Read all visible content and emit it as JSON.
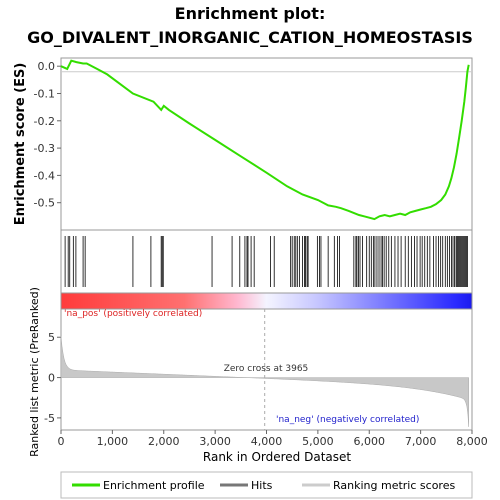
{
  "chart_data": {
    "type": "line",
    "title_line1": "Enrichment plot:",
    "title_line2": "GO_DIVALENT_INORGANIC_CATION_HOMEOSTASIS",
    "xlabel": "Rank in Ordered Dataset",
    "ylabel_top": "Enrichment score (ES)",
    "ylabel_bottom": "Ranked list metric (PreRanked)",
    "xlim": [
      0,
      8000
    ],
    "x_ticks": [
      0,
      1000,
      2000,
      3000,
      4000,
      5000,
      6000,
      7000,
      8000
    ],
    "x_tick_labels": [
      "0",
      "1,000",
      "2,000",
      "3,000",
      "4,000",
      "5,000",
      "6,000",
      "7,000",
      "8,000"
    ],
    "es_ylim": [
      -0.6,
      0.03
    ],
    "es_ticks": [
      0.0,
      -0.1,
      -0.2,
      -0.3,
      -0.4,
      -0.5
    ],
    "es_tick_labels": [
      "0.0",
      "-0.1",
      "-0.2",
      "-0.3",
      "-0.4",
      "-0.5"
    ],
    "metric_ylim": [
      -6.5,
      8.5
    ],
    "metric_ticks": [
      5,
      0,
      -5
    ],
    "metric_tick_labels": [
      "5",
      "0",
      "-5"
    ],
    "es_curve": {
      "x": [
        0,
        120,
        200,
        300,
        430,
        500,
        700,
        900,
        1400,
        1800,
        1950,
        2000,
        2100,
        2500,
        3000,
        3500,
        4000,
        4400,
        4700,
        5000,
        5200,
        5350,
        5450,
        5600,
        5800,
        5900,
        6000,
        6100,
        6200,
        6300,
        6400,
        6500,
        6600,
        6700,
        6800,
        6900,
        7000,
        7100,
        7200,
        7300,
        7400,
        7480,
        7550,
        7600,
        7650,
        7700,
        7750,
        7800,
        7850,
        7880,
        7910,
        7935
      ],
      "y": [
        0.0,
        -0.01,
        0.02,
        0.015,
        0.01,
        0.01,
        -0.01,
        -0.03,
        -0.1,
        -0.13,
        -0.16,
        -0.145,
        -0.16,
        -0.21,
        -0.27,
        -0.33,
        -0.39,
        -0.44,
        -0.47,
        -0.49,
        -0.51,
        -0.515,
        -0.52,
        -0.53,
        -0.545,
        -0.55,
        -0.555,
        -0.56,
        -0.55,
        -0.545,
        -0.55,
        -0.545,
        -0.54,
        -0.545,
        -0.535,
        -0.53,
        -0.525,
        -0.52,
        -0.515,
        -0.505,
        -0.49,
        -0.47,
        -0.44,
        -0.41,
        -0.37,
        -0.32,
        -0.26,
        -0.2,
        -0.13,
        -0.08,
        -0.02,
        0.005
      ]
    },
    "hits": [
      80,
      140,
      170,
      240,
      290,
      430,
      470,
      1400,
      1750,
      1950,
      1970,
      1990,
      2940,
      3330,
      3480,
      3580,
      3620,
      3640,
      3700,
      3760,
      4080,
      4150,
      4470,
      4500,
      4540,
      4570,
      4600,
      4640,
      4700,
      4740,
      4760,
      4790,
      4810,
      4990,
      5030,
      5060,
      5200,
      5320,
      5380,
      5420,
      5700,
      5740,
      5760,
      5790,
      5820,
      5870,
      5950,
      6000,
      6040,
      6080,
      6110,
      6150,
      6190,
      6230,
      6260,
      6290,
      6330,
      6380,
      6430,
      6500,
      6560,
      6620,
      6700,
      6760,
      6820,
      6880,
      6930,
      6990,
      7030,
      7080,
      7130,
      7180,
      7250,
      7300,
      7350,
      7390,
      7430,
      7480,
      7520,
      7560,
      7600,
      7630,
      7660,
      7690,
      7710,
      7730,
      7750,
      7770,
      7790,
      7810,
      7830,
      7850,
      7870,
      7890,
      7910
    ],
    "zero_cross_label": "Zero cross at 3965",
    "zero_cross_x": 3965,
    "pos_label": "'na_pos' (positively correlated)",
    "neg_label": "'na_neg' (negatively correlated)",
    "legend": [
      "Enrichment profile",
      "Hits",
      "Ranking metric scores"
    ],
    "colors": {
      "curve": "#33dd00",
      "pos_text": "#dd2222",
      "neg_text": "#2222cc",
      "metric_fill": "#c8c8c8",
      "hits": "#000000"
    }
  }
}
